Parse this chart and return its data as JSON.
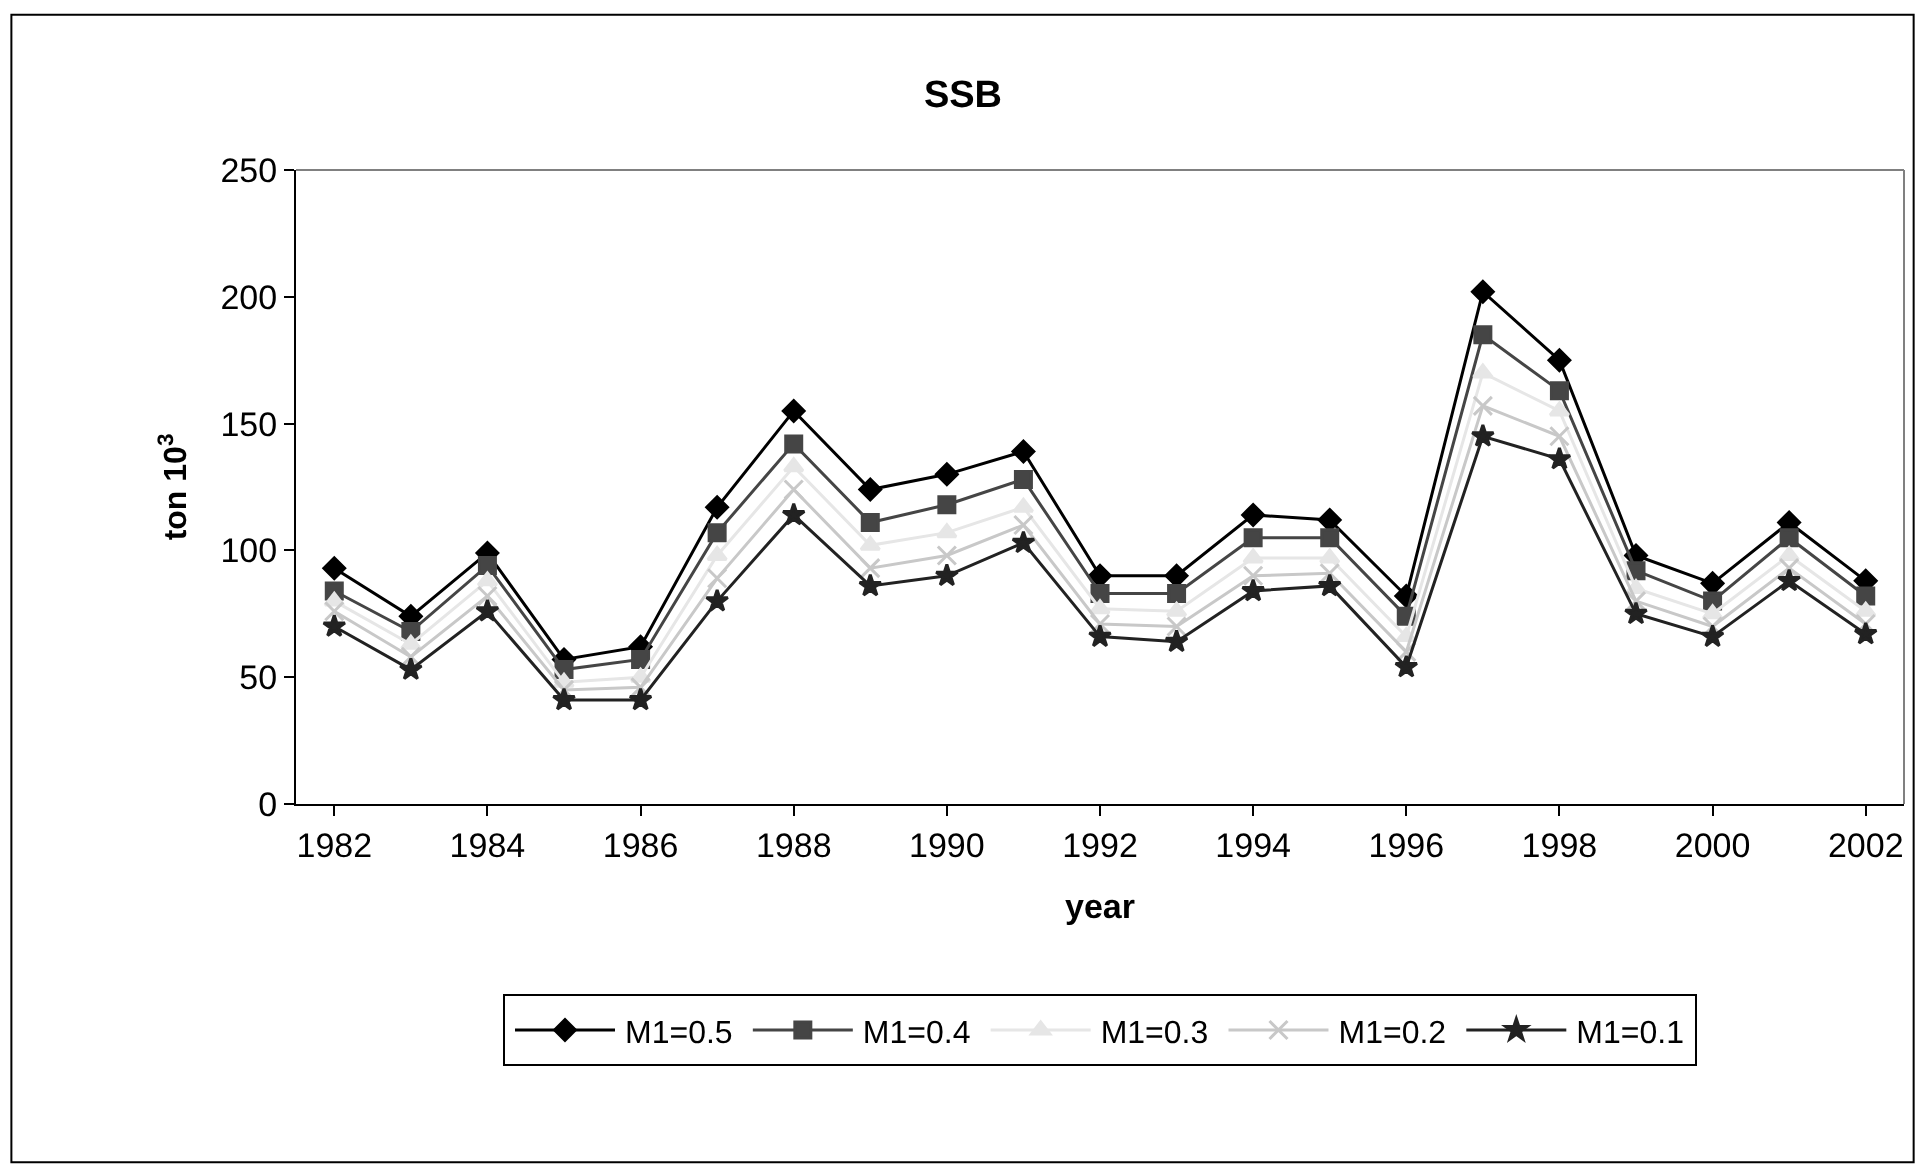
{
  "chart_data": {
    "type": "line",
    "title": "SSB",
    "xlabel": "year",
    "ylabel": "ton 10$^{3}$",
    "x": [
      1982,
      1983,
      1984,
      1985,
      1986,
      1987,
      1988,
      1989,
      1990,
      1991,
      1992,
      1993,
      1994,
      1995,
      1996,
      1997,
      1998,
      1999,
      2000,
      2001,
      2002
    ],
    "xlim": [
      1981.5,
      2002.5
    ],
    "xticks": [
      1982,
      1984,
      1986,
      1988,
      1990,
      1992,
      1994,
      1996,
      1998,
      2000,
      2002
    ],
    "ylim": [
      0,
      250
    ],
    "yticks": [
      0,
      50,
      100,
      150,
      200,
      250
    ],
    "legend": "bottom",
    "line_style": "solid",
    "series": [
      {
        "name": "M1=0.5",
        "color": "#000000",
        "marker": "diamond",
        "values": [
          93,
          74,
          99,
          57,
          62,
          117,
          155,
          124,
          130,
          139,
          90,
          90,
          114,
          112,
          82,
          202,
          175,
          98,
          87,
          111,
          88
        ]
      },
      {
        "name": "M1=0.4",
        "color": "#454545",
        "marker": "square",
        "values": [
          84,
          68,
          94,
          53,
          57,
          107,
          142,
          111,
          118,
          128,
          83,
          83,
          105,
          105,
          74,
          185,
          163,
          92,
          80,
          105,
          82
        ]
      },
      {
        "name": "M1=0.3",
        "color": "#e6e6e6",
        "marker": "triangle",
        "values": [
          80,
          63,
          88,
          48,
          50,
          98,
          133,
          102,
          107,
          117,
          77,
          76,
          97,
          97,
          66,
          170,
          155,
          85,
          75,
          98,
          76
        ]
      },
      {
        "name": "M1=0.2",
        "color": "#c8c8c8",
        "marker": "cross",
        "values": [
          76,
          58,
          82,
          45,
          46,
          89,
          124,
          93,
          98,
          110,
          71,
          70,
          90,
          91,
          60,
          157,
          145,
          80,
          70,
          93,
          71
        ]
      },
      {
        "name": "M1=0.1",
        "color": "#222222",
        "marker": "star",
        "values": [
          70,
          53,
          76,
          41,
          41,
          80,
          114,
          86,
          90,
          103,
          66,
          64,
          84,
          86,
          54,
          145,
          136,
          75,
          66,
          88,
          67
        ]
      }
    ]
  }
}
